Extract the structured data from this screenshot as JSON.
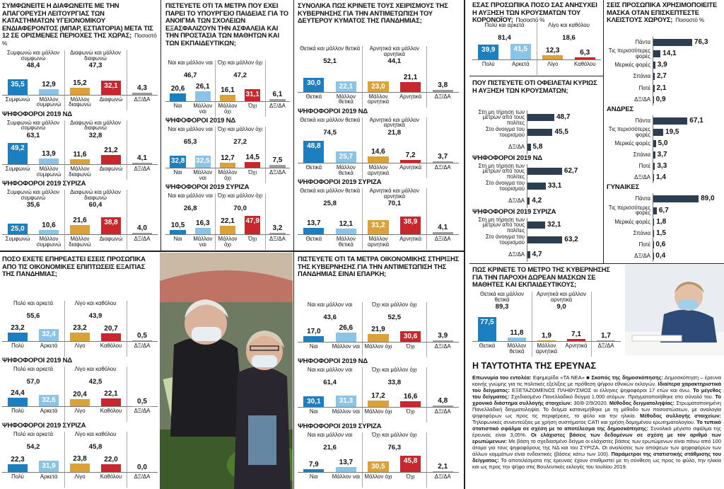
{
  "chart_data": [
    {
      "type": "bar",
      "title": "ΣΥΜΦΩΝΕΙΤΕ Η ΔΙΑΦΩΝΕΙΤΕ ΜΕ ΤΗΝ ΑΠΑΓΟΡΕΥΣΗ ΛΕΙΤΟΥΡΓΙΑΣ ΤΩΝ ΚΑΤΑΣΤΗΜΑΤΩΝ ΥΓΕΙΟΝΟΜΙΚΟΥ ΕΝΔΙΑΦΕΡΟΝΤΟΣ (ΜΠΑΡ, ΕΣΤΙΑΤΟΡΙΑ) ΜΕΤΑ ΤΙΣ 12 ΣΕ ΟΡΙΣΜΕΝΕΣ ΠΕΡΙΟΧΕΣ ΤΗΣ ΧΩΡΑΣ;",
      "unit": "Ποσοστό %",
      "categories": [
        "Συμφωνώ",
        "Μάλλον συμφωνώ",
        "Μάλλον διαφωνώ",
        "Διαφωνώ",
        "ΔΞ/ΔΑ"
      ],
      "summary_labels": [
        "Συμφωνώ και μάλλον συμφωνώ",
        "Διαφωνώ και μάλλον διαφωνώ"
      ],
      "colors": [
        "#1b7fc0",
        "#8cc4e8",
        "#dca23a",
        "#c8282d",
        "#9d9d9d"
      ],
      "ylim": [
        0,
        60
      ],
      "groups": [
        {
          "values": [
            35.5,
            12.9,
            15.2,
            32.1,
            4.3
          ],
          "value_labels": [
            "35,5",
            "12,9",
            "15,2",
            "32,1",
            "4,3"
          ],
          "totals": [
            48.4,
            47.3
          ],
          "total_labels": [
            "48,4",
            "47,3"
          ]
        },
        {
          "name": "ΨΗΦΟΦΟΡΟΙ 2019 ΝΔ",
          "values": [
            49.2,
            13.9,
            11.6,
            21.2,
            4.1
          ],
          "value_labels": [
            "49,2",
            "13,9",
            "11,6",
            "21,2",
            "4,1"
          ],
          "totals": [
            63.1,
            32.8
          ],
          "total_labels": [
            "63,1",
            "32,8"
          ]
        },
        {
          "name": "ΨΗΦΟΦΟΡΟΙ 2019 ΣΥΡΙΖΑ",
          "values": [
            25.0,
            10.6,
            21.6,
            38.8,
            4.0
          ],
          "value_labels": [
            "25,0",
            "10,6",
            "21,6",
            "38,8",
            "4,0"
          ],
          "totals": [
            35.6,
            60.4
          ],
          "total_labels": [
            "35,6",
            "60,4"
          ]
        }
      ]
    },
    {
      "type": "bar",
      "title": "ΠΙΣΤΕΥΕΤΕ ΟΤΙ ΤΑ ΜΕΤΡΑ ΠΟΥ ΕΧΕΙ ΠΑΡΕΙ ΤΟ ΥΠΟΥΡΓΕΙΟ ΠΑΙΔΕΙΑΣ ΓΙΑ ΤΟ ΑΝΟΙΓΜΑ ΤΩΝ ΣΧΟΛΕΙΩΝ ΕΞΑΣΦΑΛΙΖΟΥΝ ΤΗΝ ΑΣΦΑΛΕΙΑ ΚΑΙ ΤΗΝ ΠΡΟΣΤΑΣΙΑ ΤΩΝ ΜΑΘΗΤΩΝ ΚΑΙ ΤΩΝ ΕΚΠΑΙΔΕΥΤΙΚΩΝ;",
      "categories": [
        "Ναι",
        "Μάλλον ναι",
        "Μάλλον όχι",
        "Όχι",
        "ΔΞ/ΔΑ"
      ],
      "summary_labels": [
        "Ναι και μάλλον ναι",
        "Όχι και μάλλον όχι"
      ],
      "colors": [
        "#1b7fc0",
        "#8cc4e8",
        "#dca23a",
        "#c8282d",
        "#9d9d9d"
      ],
      "ylim": [
        0,
        60
      ],
      "groups": [
        {
          "values": [
            20.6,
            26.1,
            16.1,
            31.1,
            6.1
          ],
          "value_labels": [
            "20,6",
            "26,1",
            "16,1",
            "31,1",
            "6,1"
          ],
          "totals": [
            46.7,
            47.2
          ],
          "total_labels": [
            "46,7",
            "47,2"
          ]
        },
        {
          "name": "ΨΗΦΟΦΟΡΟΙ 2019 ΝΔ",
          "values": [
            32.8,
            32.5,
            12.7,
            14.5,
            7.5
          ],
          "value_labels": [
            "32,8",
            "32,5",
            "12,7",
            "14,5",
            "7,5"
          ],
          "totals": [
            65.3,
            27.2
          ],
          "total_labels": [
            "65,3",
            "27,2"
          ]
        },
        {
          "name": "ΨΗΦΟΦΟΡΟΙ 2019 ΣΥΡΙΖΑ",
          "values": [
            10.5,
            16.3,
            22.1,
            47.9,
            3.2
          ],
          "value_labels": [
            "10,5",
            "16,3",
            "22,1",
            "47,9",
            "3,2"
          ],
          "totals": [
            26.8,
            70.0
          ],
          "total_labels": [
            "26,8",
            "70,0"
          ]
        }
      ]
    },
    {
      "type": "bar",
      "title": "ΣΥΝΟΛΙΚΑ ΠΩΣ ΚΡΙΝΕΤΕ ΤΟΥΣ ΧΕΙΡΙΣΜΟΥΣ ΤΗΣ ΚΥΒΕΡΝΗΣΗΣ ΓΙΑ ΤΗΝ ΑΝΤΙΜΕΤΩΠΙΣΗ ΤΟΥ ΔΕΥΤΕΡΟΥ ΚΥΜΑΤΟΣ ΤΗΣ ΠΑΝΔΗΜΙΑΣ;",
      "categories": [
        "Θετικά",
        "Μάλλον θετικά",
        "Μάλλον αρνητικά",
        "Αρνητικά",
        "ΔΞ/ΔΑ"
      ],
      "summary_labels": [
        "Θετικά και μάλλον θετικά",
        "Αρνητικά και μάλλον αρνητικά"
      ],
      "colors": [
        "#1b7fc0",
        "#8cc4e8",
        "#dca23a",
        "#c8282d",
        "#9d9d9d"
      ],
      "ylim": [
        0,
        60
      ],
      "groups": [
        {
          "values": [
            30.0,
            22.1,
            23.0,
            21.1,
            3.8
          ],
          "value_labels": [
            "30,0",
            "22,1",
            "23,0",
            "21,1",
            "3,8"
          ],
          "totals": [
            52.1,
            44.1
          ],
          "total_labels": [
            "52,1",
            "44,1"
          ]
        },
        {
          "name": "ΨΗΦΟΦΟΡΟΙ 2019 ΝΔ",
          "values": [
            48.8,
            25.7,
            14.6,
            7.2,
            3.7
          ],
          "value_labels": [
            "48,8",
            "25,7",
            "14,6",
            "7,2",
            "3,7"
          ],
          "totals": [
            74.5,
            21.8
          ],
          "total_labels": [
            "74,5",
            "21,8"
          ]
        },
        {
          "name": "ΨΗΦΟΦΟΡΟΙ 2019 ΣΥΡΙΖΑ",
          "values": [
            13.7,
            12.1,
            31.2,
            38.9,
            4.1
          ],
          "value_labels": [
            "13,7",
            "12,1",
            "31,2",
            "38,9",
            "4,1"
          ],
          "totals": [
            25.8,
            70.1
          ],
          "total_labels": [
            "25,8",
            "70,1"
          ]
        }
      ]
    },
    {
      "type": "bar",
      "title": "ΕΣΑΣ ΠΡΟΣΩΠΙΚΑ ΠΟΣΟ ΣΑΣ ΑΝΗΣΥΧΕΙ Η ΑΥΞΗΣΗ ΤΩΝ ΚΡΟΥΣΜΑΤΩΝ ΤΟΥ ΚΟΡΟΝΟΪΟΥ;",
      "unit": "Ποσοστό %",
      "categories": [
        "Πολύ",
        "Αρκετά",
        "Λίγο",
        "Καθόλου"
      ],
      "summary_labels": [
        "Πολύ και αρκετά",
        "Λίγο και καθόλου"
      ],
      "colors": [
        "#1b7fc0",
        "#8cc4e8",
        "#dca23a",
        "#c8282d"
      ],
      "ylim": [
        0,
        50
      ],
      "groups": [
        {
          "values": [
            39.9,
            41.5,
            12.3,
            6.3
          ],
          "value_labels": [
            "39,9",
            "41,5",
            "12,3",
            "6,3"
          ],
          "totals": [
            81.4,
            18.6
          ],
          "total_labels": [
            "81,4",
            "18,6"
          ]
        }
      ]
    },
    {
      "type": "hbar",
      "title": "ΠΟΥ ΠΙΣΤΕΥΕΤΕ ΟΤΙ ΟΦΕΙΛΕΤΑΙ ΚΥΡΙΩΣ Η ΑΥΞΗΣΗ ΤΩΝ ΚΡΟΥΣΜΑΤΩΝ;",
      "categories": [
        "Στη μη τήρηση των μέτρων από τους πολίτες",
        "Στο άνοιγμα του τουρισμού",
        "ΔΞ/ΔΑ"
      ],
      "color": "#2d3e50",
      "xlim": [
        0,
        100
      ],
      "groups": [
        {
          "values": [
            48.7,
            45.5,
            5.8
          ],
          "value_labels": [
            "48,7",
            "45,5",
            "5,8"
          ]
        },
        {
          "name": "ΨΗΦΟΦΟΡΟΙ 2019 ΝΔ",
          "values": [
            62.7,
            33.1,
            4.2
          ],
          "value_labels": [
            "62,7",
            "33,1",
            "4,2"
          ]
        },
        {
          "name": "ΨΗΦΟΦΟΡΟΙ 2019 ΣΥΡΙΖΑ",
          "values": [
            32.1,
            63.2,
            4.7
          ],
          "value_labels": [
            "32,1",
            "63,2",
            "4,7"
          ]
        }
      ]
    },
    {
      "type": "hbar",
      "title": "ΣΕΙΣ ΠΡΟΣΩΠΙΚΑ ΧΡΗΣΙΜΟΠΟΙΕΙΤΕ ΜΑΣΚΑ ΟΤΑΝ ΕΠΙΣΚΕΠΤΕΣΤΕ ΚΛΕΙΣΤΟΥΣ ΧΩΡΟΥΣ;",
      "unit": "Ποσοστό %",
      "categories": [
        "Πάντα",
        "Τις περισσότερες φορές",
        "Μερικές φορές",
        "Σπάνια",
        "Ποτέ",
        "ΔΞ/ΔΑ"
      ],
      "color": "#2d3e50",
      "xlim": [
        0,
        100
      ],
      "groups": [
        {
          "values": [
            76.3,
            14.1,
            3.9,
            2.7,
            2.1,
            0.9
          ],
          "value_labels": [
            "76,3",
            "14,1",
            "3,9",
            "2,7",
            "2,1",
            "0,9"
          ]
        },
        {
          "name": "ΑΝΔΡΕΣ",
          "values": [
            67.1,
            19.5,
            5.0,
            3.7,
            3.3,
            1.4
          ],
          "value_labels": [
            "67,1",
            "19,5",
            "5,0",
            "3,7",
            "3,3",
            "1,4"
          ]
        },
        {
          "name": "ΓΥΝΑΙΚΕΣ",
          "values": [
            89.0,
            6.7,
            1.8,
            1.5,
            0.6,
            0.4
          ],
          "value_labels": [
            "89,0",
            "6,7",
            "1,8",
            "1,5",
            "0,6",
            "0,4"
          ]
        }
      ]
    },
    {
      "type": "bar",
      "title": "ΠΟΣΟ ΕΧΕΤΕ ΕΠΗΡΕΑΣΤΕΙ ΕΣΕΙΣ ΠΡΟΣΩΠΙΚΑ ΑΠΟ ΤΙΣ ΟΙΚΟΝΟΜΙΚΕΣ ΕΠΙΠΤΩΣΕΙΣ ΕΞΑΙΤΙΑΣ ΤΗΣ ΠΑΝΔΗΜΙΑΣ;",
      "categories": [
        "Πολύ",
        "Αρκετά",
        "Λίγο",
        "Καθόλου",
        "ΔΞ/ΔΑ"
      ],
      "summary_labels": [
        "Πολύ και αρκετά",
        "Λίγο και καθόλου"
      ],
      "colors": [
        "#1b7fc0",
        "#8cc4e8",
        "#dca23a",
        "#c8282d",
        "#9d9d9d"
      ],
      "ylim": [
        0,
        60
      ],
      "groups": [
        {
          "values": [
            23.2,
            32.4,
            23.2,
            20.7,
            0.5
          ],
          "value_labels": [
            "23,2",
            "32,4",
            "23,2",
            "20,7",
            "0,5"
          ],
          "totals": [
            55.6,
            43.9
          ],
          "total_labels": [
            "55,6",
            "43,9"
          ]
        },
        {
          "name": "ΨΗΦΟΦΟΡΟΙ 2019 ΝΔ",
          "values": [
            24.4,
            32.6,
            20.4,
            22.1,
            0.5
          ],
          "value_labels": [
            "24,4",
            "32,6",
            "20,4",
            "22,1",
            "0,5"
          ],
          "totals": [
            57.0,
            42.5
          ],
          "total_labels": [
            "57,0",
            "42,5"
          ]
        },
        {
          "name": "ΨΗΦΟΦΟΡΟΙ 2019 ΣΥΡΙΖΑ",
          "values": [
            22.3,
            31.9,
            23.8,
            22.0,
            0.0
          ],
          "value_labels": [
            "22,3",
            "31,9",
            "23,8",
            "22,0",
            "0,0"
          ],
          "totals": [
            54.2,
            45.8
          ],
          "total_labels": [
            "54,2",
            "45,8"
          ]
        }
      ]
    },
    {
      "type": "bar",
      "title": "ΠΙΣΤΕΥΕΤΕ ΟΤΙ ΤΑ ΜΕΤΡΑ ΟΙΚΟΝΟΜΙΚΗΣ ΣΤΗΡΙΞΗΣ ΤΗΣ ΚΥΒΕΡΝΗΣΗΣ ΓΙΑ ΤΗΝ ΑΝΤΙΜΕΤΩΠΙΣΗ ΤΗΣ ΠΑΝΔΗΜΙΑΣ ΕΙΝΑΙ ΕΠΑΡΚΗ;",
      "categories": [
        "Ναι",
        "Μάλλον ναι",
        "Μάλλον όχι",
        "Όχι",
        "ΔΞ/ΔΑ"
      ],
      "summary_labels": [
        "Ναι και μάλλον ναι",
        "Όχι και μάλλον όχι"
      ],
      "colors": [
        "#1b7fc0",
        "#8cc4e8",
        "#dca23a",
        "#c8282d",
        "#9d9d9d"
      ],
      "ylim": [
        0,
        60
      ],
      "groups": [
        {
          "values": [
            17.0,
            26.6,
            21.9,
            30.6,
            3.9
          ],
          "value_labels": [
            "17,0",
            "26,6",
            "21,9",
            "30,6",
            "3,9"
          ],
          "totals": [
            43.6,
            52.5
          ],
          "total_labels": [
            "43,6",
            "52,5"
          ]
        },
        {
          "name": "ΨΗΦΟΦΟΡΟΙ 2019 ΝΔ",
          "values": [
            30.1,
            31.3,
            17.2,
            16.6,
            4.8
          ],
          "value_labels": [
            "30,1",
            "31,3",
            "17,2",
            "16,6",
            "4,8"
          ],
          "totals": [
            61.4,
            33.8
          ],
          "total_labels": [
            "61,4",
            "33,8"
          ]
        },
        {
          "name": "ΨΗΦΟΦΟΡΟΙ 2019 ΣΥΡΙΖΑ",
          "values": [
            7.9,
            13.7,
            30.5,
            45.8,
            2.1
          ],
          "value_labels": [
            "7,9",
            "13,7",
            "30,5",
            "45,8",
            "2,1"
          ],
          "totals": [
            21.6,
            76.3
          ],
          "total_labels": [
            "21,6",
            "76,3"
          ]
        }
      ]
    },
    {
      "type": "bar",
      "title": "ΠΩΣ ΚΡΙΝΕΤΕ ΤΟ ΜΕΤΡΟ ΤΗΣ ΚΥΒΕΡΝΗΣΗΣ ΓΙΑ ΤΗΝ ΠΑΡΟΧΗ ΔΩΡΕΑΝ ΜΑΣΚΩΝ ΣΕ ΜΑΘΗΤΕΣ ΚΑΙ ΕΚΠΑΙΔΕΥΤΙΚΟΥΣ;",
      "categories": [
        "Θετικά",
        "Μάλλον θετικά",
        "Μάλλον αρνητικά",
        "Αρνητικά",
        "ΔΞ/ΔΑ"
      ],
      "summary_labels": [
        "Θετικά και μάλλον θετικά",
        "Αρνητικά και μάλλον αρνητικά"
      ],
      "colors": [
        "#1b7fc0",
        "#8cc4e8",
        "#dca23a",
        "#c8282d",
        "#9d9d9d"
      ],
      "ylim": [
        0,
        100
      ],
      "groups": [
        {
          "values": [
            77.5,
            11.8,
            1.9,
            7.1,
            1.7
          ],
          "value_labels": [
            "77,5",
            "11,8",
            "1,9",
            "7,1",
            "1,7"
          ],
          "totals": [
            89.3,
            9.0
          ],
          "total_labels": [
            "89,3",
            "9,0"
          ]
        }
      ]
    }
  ],
  "methodology": {
    "title": "Η ΤΑΥΤΟΤΗΤΑ ΤΗΣ ΕΡΕΥΝΑΣ",
    "paragraphs": [
      {
        "label": "Επωνυμία του εντολέα:",
        "text": "Εφημερίδα «ΤΑ ΝΕΑ» ■"
      },
      {
        "label": "Σκοπός της δημοσκόπησης:",
        "text": "Δημοσκόπηση – έρευνα κοινής γνώμης για τις πολιτικές εξελίξεις με πρόθεση ψήφου εθνικών εκλογών."
      },
      {
        "label": "Ιδιαίτερα χαρακτηριστικά του δείγματος:",
        "text": "ΕΞΕΤΑΖΟΜΕΝΟΣ ΠΛΗΘΥΣΜΟΣ οι έλληνες ψηφοφόροι 17 ετών και άνω."
      },
      {
        "label": "Το μέγεθος του δείγματος:",
        "text": "Σχεδιασμένο Πανελλαδικό δείγμα 1.000 ατόμων. Πραγματοποιήθηκε στο σύνολό του."
      },
      {
        "label": "Το χρονικό διάστημα συλλογής στοιχείων:",
        "text": "30/8-2/9/2020."
      },
      {
        "label": "Μέθοδος δειγματοληψίας:",
        "text": "Στρωματοποιημένη Πανελλαδική δειγματοληψία. Το δείγμα κατανεμήθηκε με τη μέθοδο των ποσοστώσεων, με αναλογία ψηφοφόρων ως προς τις περιφέρειες, το φύλο και την ηλικία."
      },
      {
        "label": "Μέθοδος συλλογής στοιχείων:",
        "text": "Τηλεφωνικές συνεντεύξεις με χρήση συστήματος CATI και χρήση δομημένου ερωτηματολογίου."
      },
      {
        "label": "Το τυπικό στατιστικό σφάλμα σε σχέση με το αποτέλεσμα της δημοσκόπησης:",
        "text": "Συνολικό μέγιστο σφάλμα της έρευνας είναι 3,05%."
      },
      {
        "label": "Οι ελάχιστες βάσεις των δεδομένων σε σχέση με τον αριθμό των ερωτώμενων:",
        "text": "Με βάση το σχεδιασμένο δείγμα οι ελάχιστες βάσεις των ερωτώμενων είναι πάνω από 100 άτομα για τους ψηφοφόρους της ΝΔ και του ΣΥΡΙΖΑ. Οι αναλύσεις των απόψεων των ψηφοφόρων των άλλων κομμάτων είναι ενδεικτικές (βάσεις κάτω των 100)."
      },
      {
        "label": "Παράμετροι της στατιστικής στάθμισης του δείγματος:",
        "text": "Τα αποτελέσματα της έρευνας έχουν σταθμιστεί με τη σύνθεση ως προς το φύλο, την ηλικία και ως προς την ψήφο στις Βουλευτικές εκλογές του Ιουλίου 2019."
      }
    ]
  }
}
